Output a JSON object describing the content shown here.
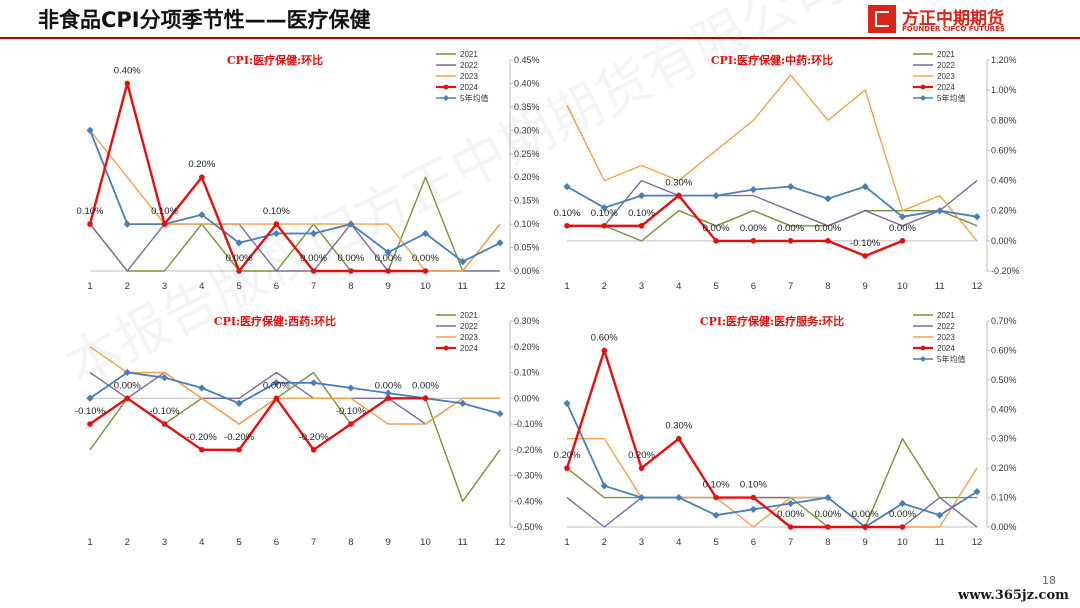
{
  "page": {
    "title": "非食品CPI分项季节性——医疗保健",
    "page_number": "18",
    "logo_cn": "方正中期期货",
    "logo_en": "FOUNDER CIFCO FUTURES",
    "watermark": "本报告版权归方正中期期货有限公司所有",
    "watermark_url": "www.365jz.com"
  },
  "colors": {
    "2021": "#77933c",
    "2022": "#7f6aa1",
    "2023": "#f4a24d",
    "2024": "#e3100f",
    "avg5": "#4a7ebb",
    "title_red": "#e3100f"
  },
  "chart_data": [
    {
      "type": "line",
      "title": "CPI:医疗保健:环比",
      "x": [
        "1",
        "2",
        "3",
        "4",
        "5",
        "6",
        "7",
        "8",
        "9",
        "10",
        "11",
        "12"
      ],
      "ylim": [
        0,
        0.45
      ],
      "yticks": [
        "0.00%",
        "0.05%",
        "0.10%",
        "0.15%",
        "0.20%",
        "0.25%",
        "0.30%",
        "0.35%",
        "0.40%",
        "0.45%"
      ],
      "legend": [
        "2021",
        "2022",
        "2023",
        "2024",
        "5年均值"
      ],
      "series": [
        {
          "name": "2021",
          "values": [
            0.1,
            0,
            0,
            0.1,
            0,
            0,
            0.1,
            0,
            0,
            0.2,
            0,
            0.1
          ]
        },
        {
          "name": "2022",
          "values": [
            0.1,
            0,
            0.1,
            0.1,
            0.1,
            0,
            0,
            0.1,
            0,
            0,
            0,
            0
          ]
        },
        {
          "name": "2023",
          "values": [
            0.3,
            0.2,
            0.1,
            0.1,
            0.1,
            0.1,
            0.1,
            0.1,
            0.1,
            0,
            0,
            0.1
          ]
        },
        {
          "name": "2024",
          "values": [
            0.1,
            0.4,
            0.1,
            0.2,
            0,
            0.1,
            0,
            0,
            0,
            0,
            null,
            null
          ]
        },
        {
          "name": "5年均值",
          "values": [
            0.3,
            0.1,
            0.1,
            0.12,
            0.06,
            0.08,
            0.08,
            0.1,
            0.04,
            0.08,
            0.02,
            0.06
          ]
        }
      ],
      "labels": [
        "0.10%",
        "0.40%",
        "0.10%",
        "0.20%",
        "0.00%",
        "0.10%",
        "0.00%",
        "0.00%",
        "0.00%",
        "0.00%"
      ]
    },
    {
      "type": "line",
      "title": "CPI:医疗保健:中药:环比",
      "x": [
        "1",
        "2",
        "3",
        "4",
        "5",
        "6",
        "7",
        "8",
        "9",
        "10",
        "11",
        "12"
      ],
      "ylim": [
        -0.2,
        1.2
      ],
      "yticks": [
        "-0.20%",
        "0.00%",
        "0.20%",
        "0.40%",
        "0.60%",
        "0.80%",
        "1.00%",
        "1.20%"
      ],
      "legend": [
        "2021",
        "2022",
        "2023",
        "2024",
        "5年均值"
      ],
      "series": [
        {
          "name": "2021",
          "values": [
            0.1,
            0.1,
            0,
            0.2,
            0.1,
            0.2,
            0.1,
            0.1,
            0.2,
            0.2,
            0.2,
            0.1
          ]
        },
        {
          "name": "2022",
          "values": [
            0.1,
            0.1,
            0.4,
            0.3,
            0.3,
            0.3,
            0.2,
            0.1,
            0.2,
            0.1,
            0.2,
            0.4
          ]
        },
        {
          "name": "2023",
          "values": [
            0.9,
            0.4,
            0.5,
            0.4,
            0.6,
            0.8,
            1.1,
            0.8,
            1.0,
            0.2,
            0.3,
            0
          ]
        },
        {
          "name": "2024",
          "values": [
            0.1,
            0.1,
            0.1,
            0.3,
            0,
            0,
            0,
            0,
            -0.1,
            0,
            null,
            null
          ]
        },
        {
          "name": "5年均值",
          "values": [
            0.36,
            0.22,
            0.3,
            0.3,
            0.3,
            0.34,
            0.36,
            0.28,
            0.36,
            0.16,
            0.2,
            0.16
          ]
        }
      ],
      "labels": [
        "0.10%",
        "0.10%",
        "0.10%",
        "0.30%",
        "0.00%",
        "0.00%",
        "0.00%",
        "0.00%",
        "-0.10%",
        "0.00%"
      ]
    },
    {
      "type": "line",
      "title": "CPI:医疗保健:西药:环比",
      "x": [
        "1",
        "2",
        "3",
        "4",
        "5",
        "6",
        "7",
        "8",
        "9",
        "10",
        "11",
        "12"
      ],
      "ylim": [
        -0.5,
        0.3
      ],
      "yticks": [
        "-0.50%",
        "-0.40%",
        "-0.30%",
        "-0.20%",
        "-0.10%",
        "0.00%",
        "0.10%",
        "0.20%",
        "0.30%"
      ],
      "legend": [
        "2021",
        "2022",
        "2023",
        "2024"
      ],
      "series": [
        {
          "name": "2021",
          "values": [
            -0.2,
            0,
            -0.1,
            0,
            -0.1,
            0,
            0.1,
            -0.1,
            0,
            0,
            -0.4,
            -0.2
          ]
        },
        {
          "name": "2022",
          "values": [
            0.1,
            0,
            0.1,
            0,
            0,
            0.1,
            0,
            0,
            0,
            -0.1,
            0,
            0
          ]
        },
        {
          "name": "2023",
          "values": [
            0.2,
            0.1,
            0.1,
            0,
            -0.1,
            0,
            0,
            0,
            -0.1,
            -0.1,
            0,
            0
          ]
        },
        {
          "name": "2024",
          "values": [
            -0.1,
            0,
            -0.1,
            -0.2,
            -0.2,
            0,
            -0.2,
            -0.1,
            0,
            0,
            null,
            null
          ]
        },
        {
          "name": "5年均值",
          "values": [
            0,
            0.1,
            0.08,
            0.04,
            -0.02,
            0.06,
            0.06,
            0.04,
            0.02,
            0,
            -0.02,
            -0.06
          ]
        }
      ],
      "labels": [
        "-0.10%",
        "0.00%",
        "-0.10%",
        "-0.20%",
        "-0.20%",
        "0.00%",
        "-0.20%",
        "-0.10%",
        "0.00%",
        "0.00%"
      ]
    },
    {
      "type": "line",
      "title": "CPI:医疗保健:医疗服务:环比",
      "x": [
        "1",
        "2",
        "3",
        "4",
        "5",
        "6",
        "7",
        "8",
        "9",
        "10",
        "11",
        "12"
      ],
      "ylim": [
        0,
        0.7
      ],
      "yticks": [
        "0.00%",
        "0.10%",
        "0.20%",
        "0.30%",
        "0.40%",
        "0.50%",
        "0.60%",
        "0.70%"
      ],
      "legend": [
        "2021",
        "2022",
        "2023",
        "2024",
        "5年均值"
      ],
      "series": [
        {
          "name": "2021",
          "values": [
            0.2,
            0.1,
            0.1,
            0.1,
            0.1,
            0.1,
            0.1,
            0,
            0,
            0.3,
            0.1,
            0.1
          ]
        },
        {
          "name": "2022",
          "values": [
            0.1,
            0,
            0.1,
            0.1,
            0.1,
            0.1,
            0.1,
            0.1,
            0,
            0,
            0.1,
            0
          ]
        },
        {
          "name": "2023",
          "values": [
            0.3,
            0.3,
            0.1,
            0.1,
            0.1,
            0,
            0.1,
            0.1,
            0,
            0,
            0,
            0.2
          ]
        },
        {
          "name": "2024",
          "values": [
            0.2,
            0.6,
            0.2,
            0.3,
            0.1,
            0.1,
            0,
            0,
            0,
            0,
            null,
            null
          ]
        },
        {
          "name": "5年均值",
          "values": [
            0.42,
            0.14,
            0.1,
            0.1,
            0.04,
            0.06,
            0.08,
            0.1,
            0,
            0.08,
            0.04,
            0.12
          ]
        }
      ],
      "labels": [
        "0.20%",
        "0.60%",
        "0.20%",
        "0.30%",
        "0.10%",
        "0.10%",
        "0.00%",
        "0.00%",
        "0.00%",
        "0.00%"
      ]
    }
  ]
}
